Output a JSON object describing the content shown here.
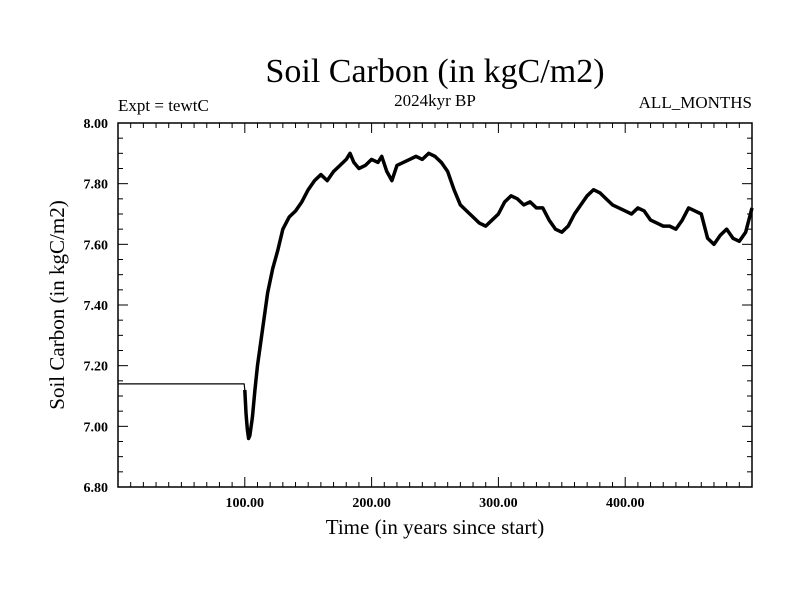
{
  "chart_data": {
    "type": "line",
    "title": "Soil Carbon (in kgC/m2)",
    "subtitle_left": "Expt = tewtC",
    "subtitle_center": "2024kyr BP",
    "subtitle_right": "ALL_MONTHS",
    "xlabel": "Time (in years since start)",
    "ylabel": "Soil Carbon (in kgC/m2)",
    "xlim": [
      0,
      500
    ],
    "ylim": [
      6.8,
      8.0
    ],
    "x_ticks": [
      100,
      200,
      300,
      400
    ],
    "x_tick_labels": [
      "100.00",
      "200.00",
      "300.00",
      "400.00"
    ],
    "y_ticks": [
      6.8,
      7.0,
      7.2,
      7.4,
      7.6,
      7.8,
      8.0
    ],
    "y_tick_labels": [
      "6.80",
      "7.00",
      "7.20",
      "7.40",
      "7.60",
      "7.80",
      "8.00"
    ],
    "color": "#000000",
    "series": [
      {
        "name": "Soil Carbon",
        "x": [
          0,
          99.5,
          100,
          101,
          102,
          103,
          104,
          106,
          108,
          110,
          114,
          118,
          122,
          126,
          130,
          135,
          140,
          145,
          150,
          155,
          160,
          165,
          170,
          175,
          180,
          183,
          186,
          190,
          195,
          200,
          205,
          208,
          212,
          216,
          220,
          225,
          230,
          235,
          240,
          245,
          250,
          255,
          260,
          265,
          270,
          275,
          280,
          285,
          290,
          295,
          300,
          305,
          310,
          315,
          320,
          325,
          330,
          335,
          340,
          345,
          350,
          355,
          360,
          365,
          370,
          375,
          380,
          385,
          390,
          395,
          400,
          405,
          410,
          415,
          420,
          425,
          430,
          435,
          440,
          445,
          450,
          455,
          460,
          465,
          470,
          475,
          480,
          485,
          490,
          495,
          500
        ],
        "y": [
          7.14,
          7.14,
          7.12,
          7.04,
          6.99,
          6.96,
          6.97,
          7.03,
          7.12,
          7.2,
          7.32,
          7.44,
          7.52,
          7.58,
          7.65,
          7.69,
          7.71,
          7.74,
          7.78,
          7.81,
          7.83,
          7.81,
          7.84,
          7.86,
          7.88,
          7.9,
          7.87,
          7.85,
          7.86,
          7.88,
          7.87,
          7.89,
          7.84,
          7.81,
          7.86,
          7.87,
          7.88,
          7.89,
          7.88,
          7.9,
          7.89,
          7.87,
          7.84,
          7.78,
          7.73,
          7.71,
          7.69,
          7.67,
          7.66,
          7.68,
          7.7,
          7.74,
          7.76,
          7.75,
          7.73,
          7.74,
          7.72,
          7.72,
          7.68,
          7.65,
          7.64,
          7.66,
          7.7,
          7.73,
          7.76,
          7.78,
          7.77,
          7.75,
          7.73,
          7.72,
          7.71,
          7.7,
          7.72,
          7.71,
          7.68,
          7.67,
          7.66,
          7.66,
          7.65,
          7.68,
          7.72,
          7.71,
          7.7,
          7.62,
          7.6,
          7.63,
          7.65,
          7.62,
          7.61,
          7.64,
          7.72
        ]
      }
    ]
  }
}
